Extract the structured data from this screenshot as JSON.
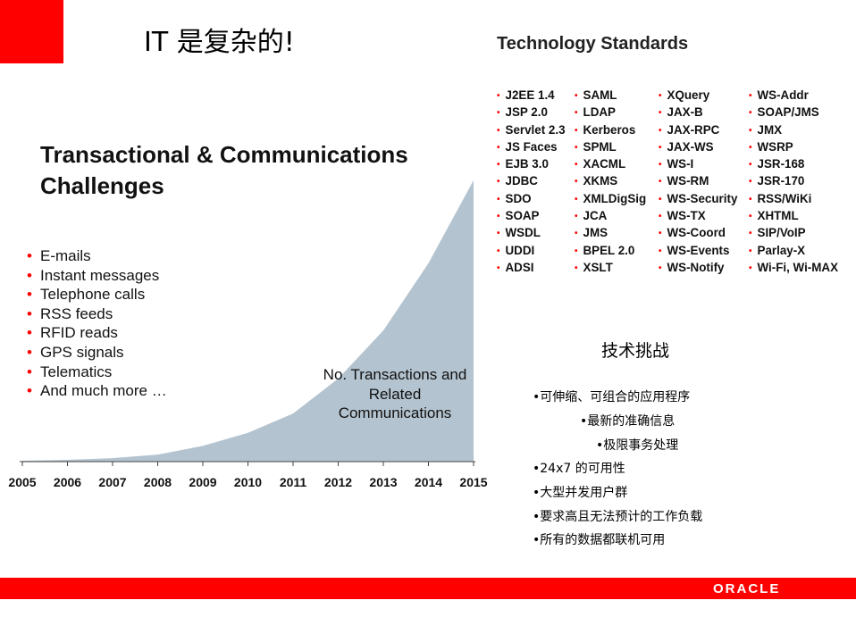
{
  "slide": {
    "title": "IT 是复杂的!",
    "tech_title": "Technology Standards",
    "standards_columns": [
      [
        "J2EE 1.4",
        "JSP 2.0",
        "Servlet 2.3",
        "JS Faces",
        "EJB 3.0",
        "JDBC",
        "SDO",
        "SOAP",
        "WSDL",
        "UDDI",
        "ADSI"
      ],
      [
        "SAML",
        "LDAP",
        "Kerberos",
        "SPML",
        "XACML",
        "XKMS",
        "XMLDigSig",
        "JCA",
        "JMS",
        "BPEL 2.0",
        "XSLT"
      ],
      [
        "XQuery",
        "JAX-B",
        "JAX-RPC",
        "JAX-WS",
        "WS-I",
        "WS-RM",
        "WS-Security",
        "WS-TX",
        "WS-Coord",
        "WS-Events",
        "WS-Notify"
      ],
      [
        "WS-Addr",
        "SOAP/JMS",
        "JMX",
        "WSRP",
        "JSR-168",
        "JSR-170",
        "RSS/WiKi",
        "XHTML",
        "SIP/VoIP",
        "Parlay-X",
        "Wi-Fi, Wi-MAX"
      ]
    ],
    "challenges_title_line1": "Transactional & Communications",
    "challenges_title_line2": "Challenges",
    "challenges": [
      "E-mails",
      "Instant messages",
      "Telephone calls",
      "RSS feeds",
      "RFID reads",
      "GPS signals",
      "Telematics",
      "And much more …"
    ],
    "chart_label_lines": [
      "No. Transactions and",
      "Related",
      "Communications"
    ],
    "cn_title": "技术挑战",
    "cn_items": [
      "•可伸缩、可组合的应用程序",
      "•最新的准确信息",
      "•极限事务处理",
      "•24x7 的可用性",
      "•大型并发用户群",
      "•要求高且无法预计的工作负载",
      "•所有的数据都联机可用"
    ],
    "brand": "ORACLE"
  },
  "chart_data": {
    "type": "area",
    "x": [
      "2005",
      "2006",
      "2007",
      "2008",
      "2009",
      "2010",
      "2011",
      "2012",
      "2013",
      "2014",
      "2015"
    ],
    "values": [
      1,
      2,
      4,
      8,
      18,
      33,
      55,
      95,
      150,
      227,
      322
    ],
    "ylim": [
      0,
      330
    ],
    "grid": false,
    "color": "#b3c3cf",
    "label": "No. Transactions and Related Communications"
  }
}
